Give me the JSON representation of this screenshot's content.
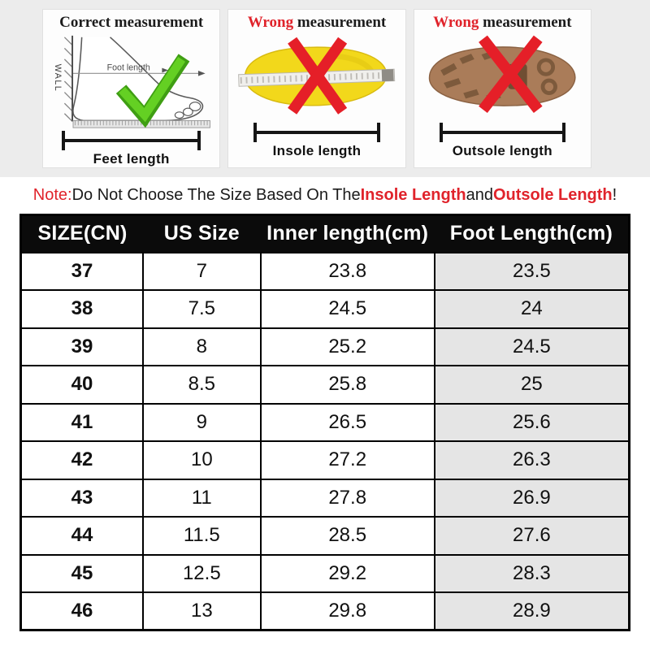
{
  "panels": [
    {
      "id": "correct-measurement",
      "title_word": "Correct",
      "title_rest": " measurement",
      "caption": "Feet length",
      "labels": {
        "wall": "WALL",
        "foot_length": "Foot length"
      }
    },
    {
      "id": "wrong-insole",
      "title_word": "Wrong",
      "title_rest": " measurement",
      "caption": "Insole length"
    },
    {
      "id": "wrong-outsole",
      "title_word": "Wrong",
      "title_rest": " measurement",
      "caption": "Outsole length"
    }
  ],
  "note": {
    "prefix": "Note:",
    "body": " Do Not Choose The Size Based On The ",
    "insole": "Insole Length",
    "and": " and ",
    "outsole": "Outsole Length",
    "bang": "!"
  },
  "chart_data": {
    "type": "table",
    "columns": [
      "SIZE(CN)",
      "US Size",
      "Inner length(cm)",
      "Foot Length(cm)"
    ],
    "column_keys": [
      "size-cn",
      "us-size",
      "inner-length",
      "foot-length"
    ],
    "rows": [
      [
        "37",
        "7",
        "23.8",
        "23.5"
      ],
      [
        "38",
        "7.5",
        "24.5",
        "24"
      ],
      [
        "39",
        "8",
        "25.2",
        "24.5"
      ],
      [
        "40",
        "8.5",
        "25.8",
        "25"
      ],
      [
        "41",
        "9",
        "26.5",
        "25.6"
      ],
      [
        "42",
        "10",
        "27.2",
        "26.3"
      ],
      [
        "43",
        "11",
        "27.8",
        "26.9"
      ],
      [
        "44",
        "11.5",
        "28.5",
        "27.6"
      ],
      [
        "45",
        "12.5",
        "29.2",
        "28.3"
      ],
      [
        "46",
        "13",
        "29.8",
        "28.9"
      ]
    ],
    "shaded_column": "Foot Length(cm)"
  },
  "colors": {
    "note_red": "#e0232b",
    "wrong_red": "#e0232b",
    "x_mark_red": "#e51f28",
    "check_green": "#64d023",
    "insole_yellow": "#f2d81b",
    "outsole_brown": "#aa7c59",
    "header_bg": "#0b0b0b",
    "shaded_cell": "#e5e5e5",
    "band_bg": "#ececec"
  }
}
